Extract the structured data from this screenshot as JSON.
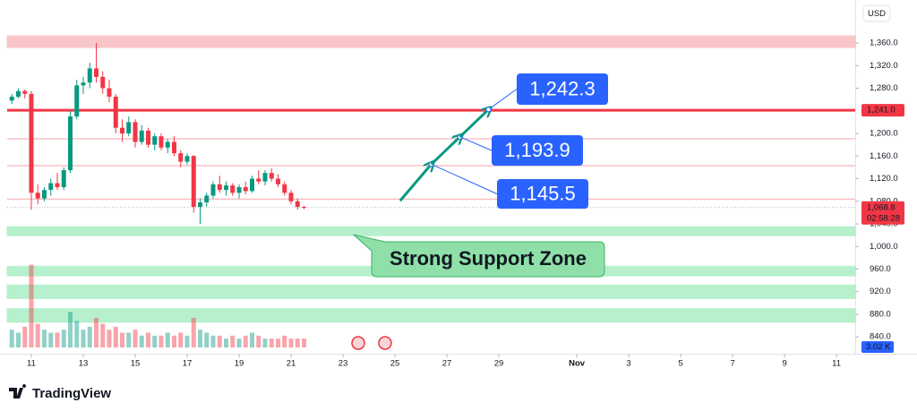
{
  "header": {
    "currency": "USD"
  },
  "chart_data": {
    "type": "candlestick",
    "x": [
      10.25,
      10.5,
      10.75,
      11,
      11.25,
      11.5,
      11.75,
      12,
      12.25,
      12.5,
      12.75,
      13,
      13.25,
      13.5,
      13.75,
      14,
      14.25,
      14.5,
      14.75,
      15,
      15.25,
      15.5,
      15.75,
      16,
      16.25,
      16.5,
      16.75,
      17,
      17.25,
      17.5,
      17.75,
      18,
      18.25,
      18.5,
      18.75,
      19,
      19.25,
      19.5,
      19.75,
      20,
      20.25,
      20.5,
      20.75,
      21,
      21.25,
      21.5
    ],
    "open": [
      1258,
      1265,
      1275,
      1270,
      1095,
      1085,
      1100,
      1112,
      1105,
      1135,
      1230,
      1285,
      1290,
      1315,
      1300,
      1280,
      1265,
      1210,
      1200,
      1220,
      1185,
      1205,
      1180,
      1195,
      1175,
      1185,
      1165,
      1150,
      1160,
      1070,
      1078,
      1090,
      1110,
      1100,
      1108,
      1095,
      1105,
      1098,
      1120,
      1115,
      1130,
      1120,
      1110,
      1095,
      1080,
      1070
    ],
    "high": [
      1270,
      1280,
      1278,
      1275,
      1110,
      1105,
      1120,
      1130,
      1140,
      1240,
      1295,
      1300,
      1325,
      1360,
      1310,
      1295,
      1270,
      1225,
      1230,
      1225,
      1215,
      1210,
      1200,
      1200,
      1190,
      1195,
      1170,
      1165,
      1162,
      1085,
      1095,
      1115,
      1125,
      1115,
      1112,
      1110,
      1115,
      1125,
      1135,
      1135,
      1138,
      1128,
      1115,
      1100,
      1085,
      1072
    ],
    "low": [
      1252,
      1262,
      1262,
      1065,
      1075,
      1080,
      1090,
      1100,
      1100,
      1130,
      1225,
      1270,
      1280,
      1290,
      1270,
      1255,
      1200,
      1185,
      1195,
      1175,
      1180,
      1175,
      1170,
      1170,
      1165,
      1160,
      1140,
      1145,
      1060,
      1040,
      1070,
      1085,
      1095,
      1090,
      1090,
      1085,
      1092,
      1095,
      1110,
      1108,
      1115,
      1105,
      1090,
      1075,
      1065,
      1066
    ],
    "close": [
      1265,
      1275,
      1270,
      1095,
      1085,
      1100,
      1112,
      1105,
      1135,
      1230,
      1285,
      1290,
      1315,
      1300,
      1280,
      1265,
      1210,
      1200,
      1220,
      1185,
      1205,
      1180,
      1195,
      1175,
      1185,
      1165,
      1150,
      1160,
      1070,
      1078,
      1090,
      1110,
      1100,
      1108,
      1095,
      1105,
      1098,
      1120,
      1115,
      1130,
      1120,
      1110,
      1095,
      1080,
      1070,
      1068.8
    ],
    "volume": [
      6,
      5,
      7,
      28,
      8,
      6,
      5,
      5,
      6,
      12,
      9,
      6,
      7,
      10,
      8,
      6,
      7,
      5,
      5,
      6,
      4,
      5,
      4,
      4,
      5,
      4,
      5,
      4,
      10,
      6,
      5,
      4,
      4,
      3,
      4,
      3,
      4,
      5,
      4,
      3,
      3,
      3,
      4,
      3,
      3,
      3.02
    ],
    "last_volume": {
      "value": 3.02,
      "label": "3.02 K"
    },
    "colors": {
      "up": "#089981",
      "down": "#f23645"
    },
    "ylim": [
      815,
      1423.4
    ],
    "yticks": [
      {
        "value": 840,
        "label": "840.0"
      },
      {
        "value": 880,
        "label": "880.0"
      },
      {
        "value": 920,
        "label": "920.0"
      },
      {
        "value": 960,
        "label": "960.0"
      },
      {
        "value": 1000,
        "label": "1,000.0"
      },
      {
        "value": 1040,
        "label": "1,040.0"
      },
      {
        "value": 1080,
        "label": "1,080.0"
      },
      {
        "value": 1120,
        "label": "1,120.0"
      },
      {
        "value": 1160,
        "label": "1,160.0"
      },
      {
        "value": 1200,
        "label": "1,200.0"
      },
      {
        "value": 1280,
        "label": "1,280.0"
      },
      {
        "value": 1320,
        "label": "1,320.0"
      },
      {
        "value": 1360,
        "label": "1,360.0"
      }
    ],
    "xlim": [
      10.07,
      42.72
    ],
    "xticks": [
      11,
      13,
      15,
      17,
      19,
      21,
      23,
      25,
      27,
      29,
      {
        "value": 32,
        "label": "Nov"
      },
      {
        "value": 34,
        "label": "3"
      },
      {
        "value": 36,
        "label": "5"
      },
      {
        "value": 38,
        "label": "7"
      },
      {
        "value": 40,
        "label": "9"
      },
      {
        "value": 42,
        "label": "11"
      }
    ],
    "levels": [
      {
        "value": 1241,
        "label": "1,241.0",
        "color": "#f23645"
      },
      {
        "value": 1190.5,
        "color": "#f5a3aa"
      },
      {
        "value": 1143,
        "color": "#f5a3aa"
      },
      {
        "value": 1084,
        "color": "#f5a3aa"
      }
    ],
    "zones": [
      {
        "from": 1352,
        "to": 1372.7,
        "color": "#f9c6c9"
      },
      {
        "from": 1019,
        "to": 1035,
        "color": "#b6f0cc"
      },
      {
        "from": 948,
        "to": 965,
        "color": "#b6f0cc"
      },
      {
        "from": 908,
        "to": 932,
        "color": "#b6f0cc"
      },
      {
        "from": 866,
        "to": 890,
        "color": "#b6f0cc"
      }
    ],
    "current_price": {
      "value": 1068.8,
      "label": "1,068.8"
    },
    "countdown": "02:58:28",
    "arrow_start": {
      "x": 25.2,
      "value": 1081
    },
    "targets": [
      {
        "x": 26.4,
        "value": 1145.5,
        "label": "1,145.5"
      },
      {
        "x": 27.5,
        "value": 1193.9,
        "label": "1,193.9"
      },
      {
        "x": 28.6,
        "value": 1242.3,
        "label": "1,242.3"
      }
    ],
    "support": {
      "label": "Strong Support Zone",
      "x": 23.4,
      "value": 1021
    }
  },
  "footer": {
    "brand": "TradingView"
  }
}
